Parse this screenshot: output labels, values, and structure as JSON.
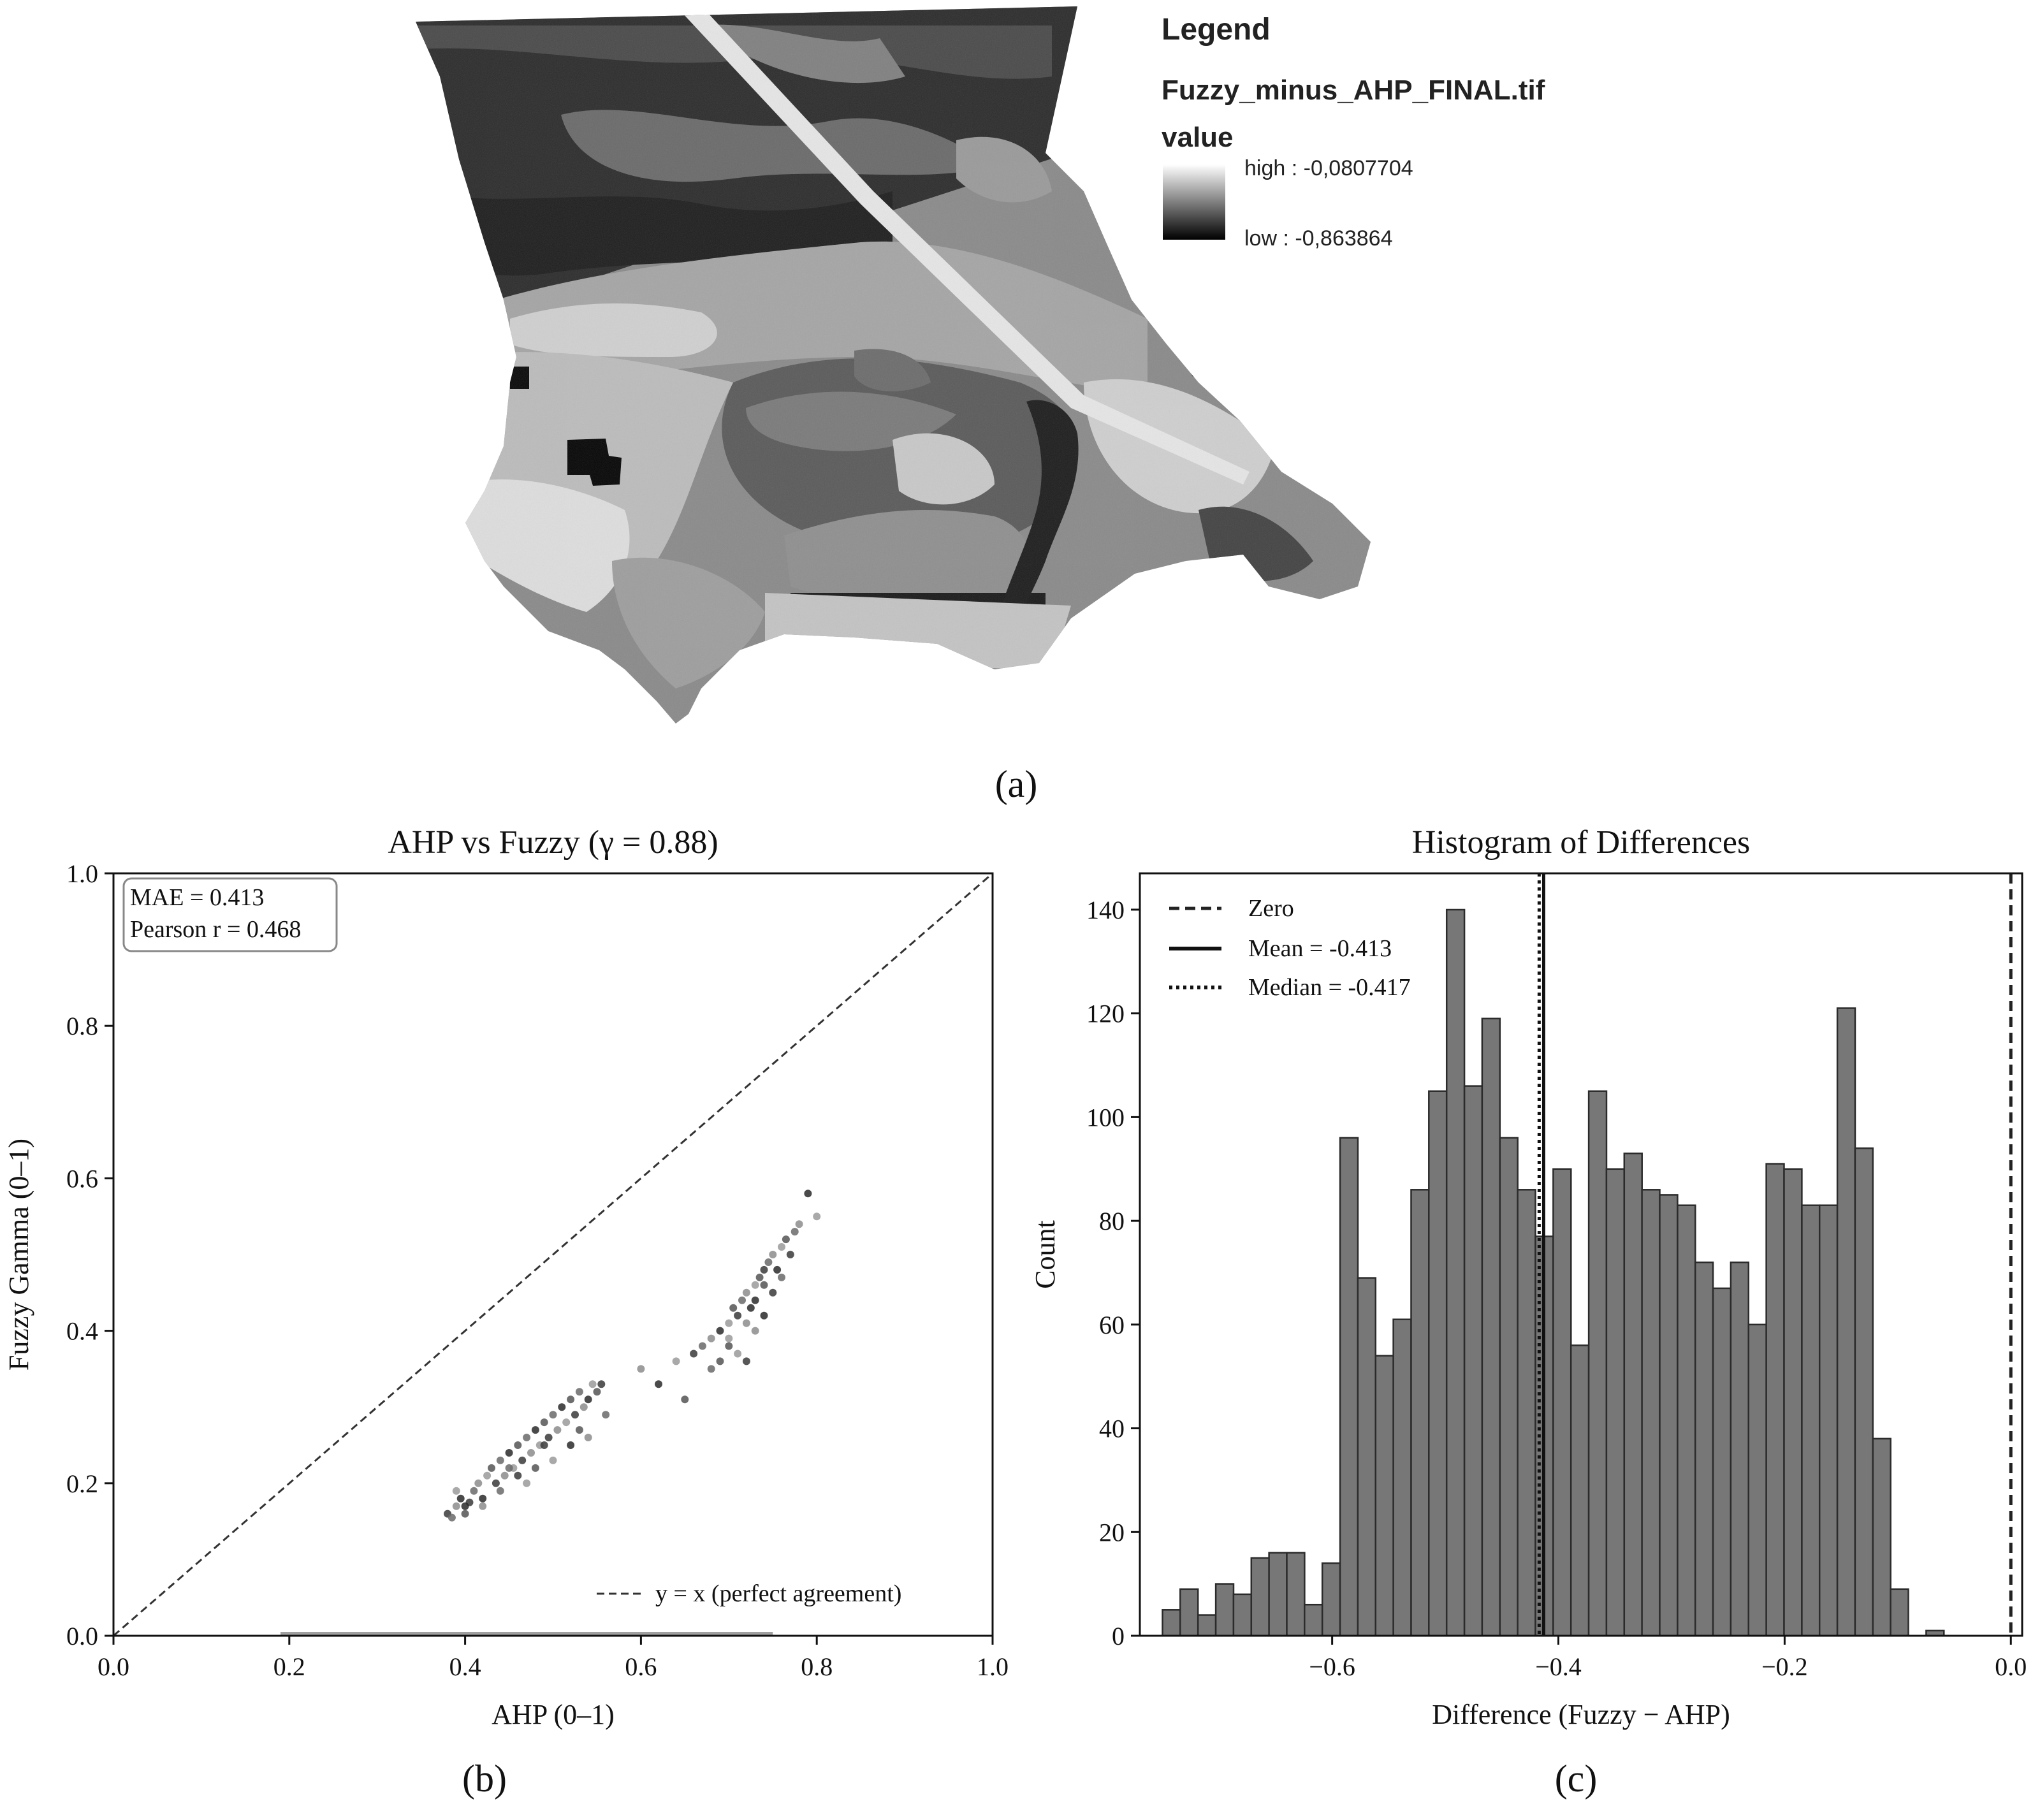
{
  "panel_a": {
    "caption": "(a)",
    "legend": {
      "title": "Legend",
      "layer": "Fuzzy_minus_AHP_FINAL.tif",
      "field": "value",
      "high": "high : -0,0807704",
      "low": "low : -0,863864",
      "high_color": "#ffffff",
      "low_color": "#000000"
    }
  },
  "panel_b": {
    "caption": "(b)",
    "stats_box": [
      "MAE = 0.413",
      "Pearson r = 0.468"
    ],
    "legend_label": "y = x (perfect agreement)"
  },
  "panel_c": {
    "caption": "(c)",
    "legend": {
      "zero": "Zero",
      "mean": "Mean = -0.413",
      "median": "Median = -0.417"
    }
  },
  "chart_data": [
    {
      "type": "scatter",
      "title": "AHP vs Fuzzy (γ = 0.88)",
      "xlabel": "AHP (0–1)",
      "ylabel": "Fuzzy Gamma (0–1)",
      "xlim": [
        0,
        1
      ],
      "ylim": [
        0,
        1
      ],
      "xticks": [
        "0.0",
        "0.2",
        "0.4",
        "0.6",
        "0.8",
        "1.0"
      ],
      "yticks": [
        "0.0",
        "0.2",
        "0.4",
        "0.6",
        "0.8",
        "1.0"
      ],
      "grid": false,
      "legend_position": "lower right",
      "reference_line": {
        "x": [
          0,
          1
        ],
        "y": [
          0,
          1
        ],
        "style": "dashed"
      },
      "points": [
        [
          0.38,
          0.16
        ],
        [
          0.385,
          0.155
        ],
        [
          0.39,
          0.17
        ],
        [
          0.395,
          0.18
        ],
        [
          0.39,
          0.19
        ],
        [
          0.4,
          0.16
        ],
        [
          0.405,
          0.175
        ],
        [
          0.41,
          0.19
        ],
        [
          0.415,
          0.2
        ],
        [
          0.42,
          0.18
        ],
        [
          0.425,
          0.21
        ],
        [
          0.43,
          0.22
        ],
        [
          0.435,
          0.2
        ],
        [
          0.44,
          0.23
        ],
        [
          0.445,
          0.21
        ],
        [
          0.45,
          0.24
        ],
        [
          0.455,
          0.22
        ],
        [
          0.46,
          0.25
        ],
        [
          0.465,
          0.23
        ],
        [
          0.47,
          0.26
        ],
        [
          0.475,
          0.24
        ],
        [
          0.48,
          0.27
        ],
        [
          0.485,
          0.25
        ],
        [
          0.49,
          0.28
        ],
        [
          0.495,
          0.26
        ],
        [
          0.5,
          0.29
        ],
        [
          0.505,
          0.27
        ],
        [
          0.51,
          0.3
        ],
        [
          0.515,
          0.28
        ],
        [
          0.52,
          0.31
        ],
        [
          0.525,
          0.29
        ],
        [
          0.53,
          0.32
        ],
        [
          0.535,
          0.3
        ],
        [
          0.54,
          0.31
        ],
        [
          0.545,
          0.33
        ],
        [
          0.55,
          0.32
        ],
        [
          0.555,
          0.33
        ],
        [
          0.56,
          0.29
        ],
        [
          0.54,
          0.26
        ],
        [
          0.52,
          0.25
        ],
        [
          0.5,
          0.23
        ],
        [
          0.48,
          0.22
        ],
        [
          0.46,
          0.21
        ],
        [
          0.44,
          0.19
        ],
        [
          0.42,
          0.17
        ],
        [
          0.4,
          0.17
        ],
        [
          0.47,
          0.2
        ],
        [
          0.53,
          0.27
        ],
        [
          0.49,
          0.25
        ],
        [
          0.45,
          0.22
        ],
        [
          0.6,
          0.35
        ],
        [
          0.62,
          0.33
        ],
        [
          0.64,
          0.36
        ],
        [
          0.65,
          0.31
        ],
        [
          0.66,
          0.37
        ],
        [
          0.67,
          0.38
        ],
        [
          0.68,
          0.39
        ],
        [
          0.69,
          0.4
        ],
        [
          0.7,
          0.41
        ],
        [
          0.705,
          0.43
        ],
        [
          0.71,
          0.42
        ],
        [
          0.715,
          0.44
        ],
        [
          0.72,
          0.45
        ],
        [
          0.725,
          0.43
        ],
        [
          0.73,
          0.46
        ],
        [
          0.735,
          0.47
        ],
        [
          0.74,
          0.48
        ],
        [
          0.745,
          0.49
        ],
        [
          0.75,
          0.5
        ],
        [
          0.755,
          0.48
        ],
        [
          0.76,
          0.51
        ],
        [
          0.765,
          0.52
        ],
        [
          0.77,
          0.5
        ],
        [
          0.775,
          0.53
        ],
        [
          0.78,
          0.54
        ],
        [
          0.79,
          0.58
        ],
        [
          0.8,
          0.55
        ],
        [
          0.7,
          0.38
        ],
        [
          0.72,
          0.36
        ],
        [
          0.68,
          0.35
        ],
        [
          0.73,
          0.4
        ],
        [
          0.74,
          0.42
        ],
        [
          0.71,
          0.37
        ],
        [
          0.69,
          0.36
        ],
        [
          0.75,
          0.45
        ],
        [
          0.76,
          0.47
        ],
        [
          0.72,
          0.41
        ],
        [
          0.73,
          0.44
        ],
        [
          0.7,
          0.39
        ],
        [
          0.74,
          0.46
        ]
      ]
    },
    {
      "type": "bar",
      "title": "Histogram of Differences",
      "xlabel": "Difference (Fuzzy − AHP)",
      "ylabel": "Count",
      "xlim": [
        -0.77,
        0.01
      ],
      "ylim": [
        0,
        147
      ],
      "xticks": [
        "−0.6",
        "−0.4",
        "−0.2",
        "0.0"
      ],
      "yticks": [
        "0",
        "20",
        "40",
        "60",
        "80",
        "100",
        "120",
        "140"
      ],
      "grid": false,
      "legend_position": "upper left",
      "bin_start": -0.75,
      "bin_width": 0.0157,
      "values": [
        5,
        9,
        4,
        10,
        8,
        15,
        16,
        16,
        6,
        14,
        96,
        69,
        54,
        61,
        86,
        105,
        140,
        106,
        119,
        96,
        86,
        77,
        90,
        56,
        105,
        90,
        93,
        86,
        85,
        83,
        72,
        67,
        72,
        60,
        91,
        90,
        83,
        83,
        121,
        94,
        38,
        9,
        0,
        1
      ],
      "reference_lines": [
        {
          "name": "Zero",
          "x": 0.0,
          "style": "dashed"
        },
        {
          "name": "Mean = -0.413",
          "x": -0.413,
          "style": "solid"
        },
        {
          "name": "Median = -0.417",
          "x": -0.417,
          "style": "dotted"
        }
      ]
    }
  ]
}
